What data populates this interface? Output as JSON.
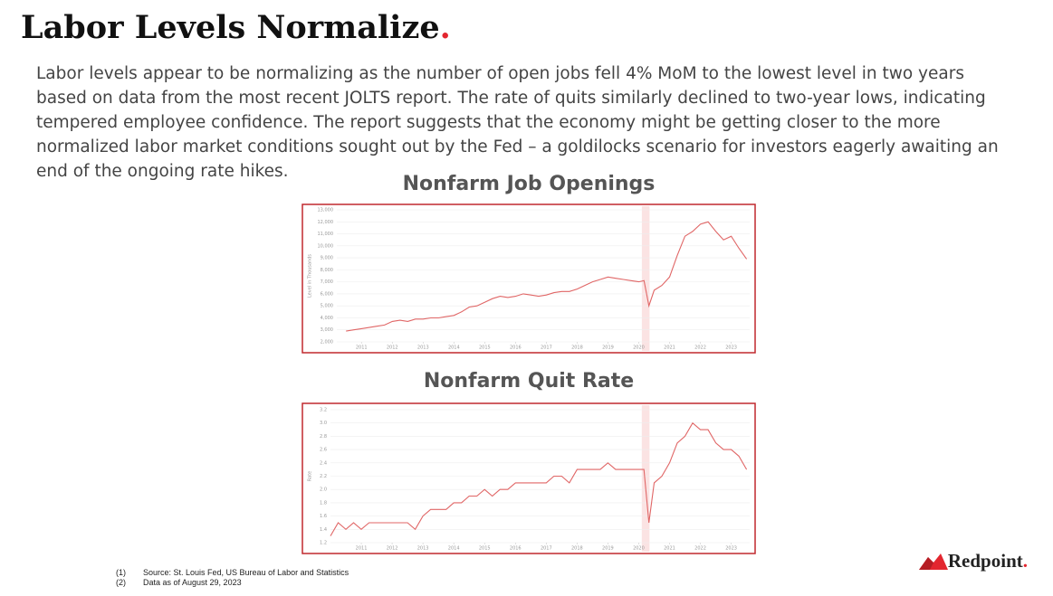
{
  "header": {
    "title": "Labor Levels Normalize",
    "title_dot": "."
  },
  "body": "Labor levels appear to be normalizing as the number of open jobs fell 4% MoM to the lowest level in two years based on data from the most recent JOLTS report. The rate of quits similarly declined to two-year lows, indicating tempered employee confidence. The report suggests that the economy might be getting closer to the more normalized labor market conditions sought out by the Fed – a goldilocks scenario for investors eagerly awaiting an end of the ongoing rate hikes.",
  "chart_data": [
    {
      "type": "line",
      "title": "Nonfarm Job Openings",
      "y_label": "Level in Thousands",
      "color": "#e06666",
      "grid": true,
      "shaded_span": [
        2020.1,
        2020.35
      ],
      "xlim": [
        2010.2,
        2023.6
      ],
      "xticks": [
        2011,
        2012,
        2013,
        2014,
        2015,
        2016,
        2017,
        2018,
        2019,
        2020,
        2021,
        2022,
        2023
      ],
      "ylim": [
        2000,
        13000
      ],
      "yticks": [
        {
          "value": 2000,
          "label": "2,000"
        },
        {
          "value": 3000,
          "label": "3,000"
        },
        {
          "value": 4000,
          "label": "4,000"
        },
        {
          "value": 5000,
          "label": "5,000"
        },
        {
          "value": 6000,
          "label": "6,000"
        },
        {
          "value": 7000,
          "label": "7,000"
        },
        {
          "value": 8000,
          "label": "8,000"
        },
        {
          "value": 9000,
          "label": "9,000"
        },
        {
          "value": 10000,
          "label": "10,000"
        },
        {
          "value": 11000,
          "label": "11,000"
        },
        {
          "value": 12000,
          "label": "12,000"
        },
        {
          "value": 13000,
          "label": "13,000"
        }
      ],
      "x": [
        2010.5,
        2010.75,
        2011,
        2011.25,
        2011.5,
        2011.75,
        2012,
        2012.25,
        2012.5,
        2012.75,
        2013,
        2013.25,
        2013.5,
        2013.75,
        2014,
        2014.25,
        2014.5,
        2014.75,
        2015,
        2015.25,
        2015.5,
        2015.75,
        2016,
        2016.25,
        2016.5,
        2016.75,
        2017,
        2017.25,
        2017.5,
        2017.75,
        2018,
        2018.25,
        2018.5,
        2018.75,
        2019,
        2019.25,
        2019.5,
        2019.75,
        2020,
        2020.17,
        2020.33,
        2020.5,
        2020.75,
        2021,
        2021.25,
        2021.5,
        2021.75,
        2022,
        2022.25,
        2022.5,
        2022.75,
        2023,
        2023.25,
        2023.5
      ],
      "values": [
        2900,
        3000,
        3100,
        3200,
        3300,
        3400,
        3700,
        3800,
        3700,
        3900,
        3900,
        4000,
        4000,
        4100,
        4200,
        4500,
        4900,
        5000,
        5300,
        5600,
        5800,
        5700,
        5800,
        6000,
        5900,
        5800,
        5900,
        6100,
        6200,
        6200,
        6400,
        6700,
        7000,
        7200,
        7400,
        7300,
        7200,
        7100,
        7000,
        7100,
        5000,
        6300,
        6700,
        7400,
        9200,
        10800,
        11200,
        11800,
        12000,
        11200,
        10500,
        10800,
        9800,
        8900
      ]
    },
    {
      "type": "line",
      "title": "Nonfarm Quit Rate",
      "y_label": "Rate",
      "color": "#e06666",
      "grid": true,
      "shaded_span": [
        2020.1,
        2020.35
      ],
      "xlim": [
        2010,
        2023.6
      ],
      "xticks": [
        2011,
        2012,
        2013,
        2014,
        2015,
        2016,
        2017,
        2018,
        2019,
        2020,
        2021,
        2022,
        2023
      ],
      "ylim": [
        1.2,
        3.2
      ],
      "yticks": [
        1.2,
        1.4,
        1.6,
        1.8,
        {
          "value": 2,
          "label": "2.0"
        },
        2.2,
        2.4,
        2.6,
        2.8,
        {
          "value": 3,
          "label": "3.0"
        },
        3.2
      ],
      "x": [
        2010,
        2010.25,
        2010.5,
        2010.75,
        2011,
        2011.25,
        2011.5,
        2011.75,
        2012,
        2012.25,
        2012.5,
        2012.75,
        2013,
        2013.25,
        2013.5,
        2013.75,
        2014,
        2014.25,
        2014.5,
        2014.75,
        2015,
        2015.25,
        2015.5,
        2015.75,
        2016,
        2016.25,
        2016.5,
        2016.75,
        2017,
        2017.25,
        2017.5,
        2017.75,
        2018,
        2018.25,
        2018.5,
        2018.75,
        2019,
        2019.25,
        2019.5,
        2019.75,
        2020,
        2020.17,
        2020.33,
        2020.5,
        2020.75,
        2021,
        2021.25,
        2021.5,
        2021.75,
        2022,
        2022.25,
        2022.5,
        2022.75,
        2023,
        2023.25,
        2023.5
      ],
      "values": [
        1.3,
        1.5,
        1.4,
        1.5,
        1.4,
        1.5,
        1.5,
        1.5,
        1.5,
        1.5,
        1.5,
        1.4,
        1.6,
        1.7,
        1.7,
        1.7,
        1.8,
        1.8,
        1.9,
        1.9,
        2.0,
        1.9,
        2.0,
        2.0,
        2.1,
        2.1,
        2.1,
        2.1,
        2.1,
        2.2,
        2.2,
        2.1,
        2.3,
        2.3,
        2.3,
        2.3,
        2.4,
        2.3,
        2.3,
        2.3,
        2.3,
        2.3,
        1.5,
        2.1,
        2.2,
        2.4,
        2.7,
        2.8,
        3.0,
        2.9,
        2.9,
        2.7,
        2.6,
        2.6,
        2.5,
        2.3
      ]
    }
  ],
  "footnotes": [
    {
      "number": "(1)",
      "text": "Source: St. Louis Fed, US Bureau of Labor and Statistics"
    },
    {
      "number": "(2)",
      "text": "Data as of August 29, 2023"
    }
  ],
  "logo": {
    "text": "Redpoint",
    "dot": "."
  }
}
